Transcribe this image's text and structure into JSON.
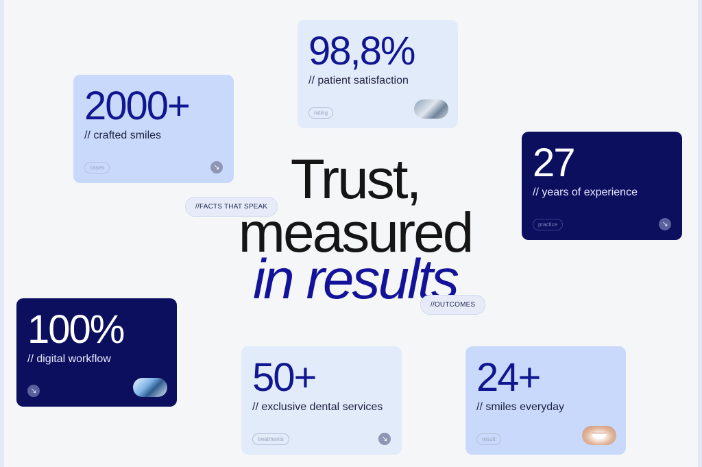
{
  "heading": {
    "line1": "Trust,",
    "line2": "measured",
    "line3": "in results"
  },
  "pills": {
    "facts": "//FACTS THAT SPEAK",
    "outcomes": "//OUTCOMES"
  },
  "cards": {
    "satisfaction": {
      "value": "98,8%",
      "label": "// patient satisfaction",
      "tag": "rating"
    },
    "smiles": {
      "value": "2000+",
      "label": "// crafted smiles",
      "tag": "cases"
    },
    "years": {
      "value": "27",
      "label": "// years of experience",
      "tag": "practice"
    },
    "digital": {
      "value": "100%",
      "label": "// digital workflow"
    },
    "services": {
      "value": "50+",
      "label": "// exclusive dental services",
      "tag": "treatments"
    },
    "everyday": {
      "value": "24+",
      "label": "// smiles everyday",
      "tag": "result"
    }
  },
  "icons": {
    "arrow": "arrow-down-right-icon",
    "clinic": "clinic-photo",
    "tech": "dental-tech-photo",
    "smile": "smile-photo"
  },
  "colors": {
    "accent": "#10168f",
    "dark_card": "#0b0f5e",
    "light_card": "#e2ebfa",
    "mid_card": "#c9d9fb"
  }
}
